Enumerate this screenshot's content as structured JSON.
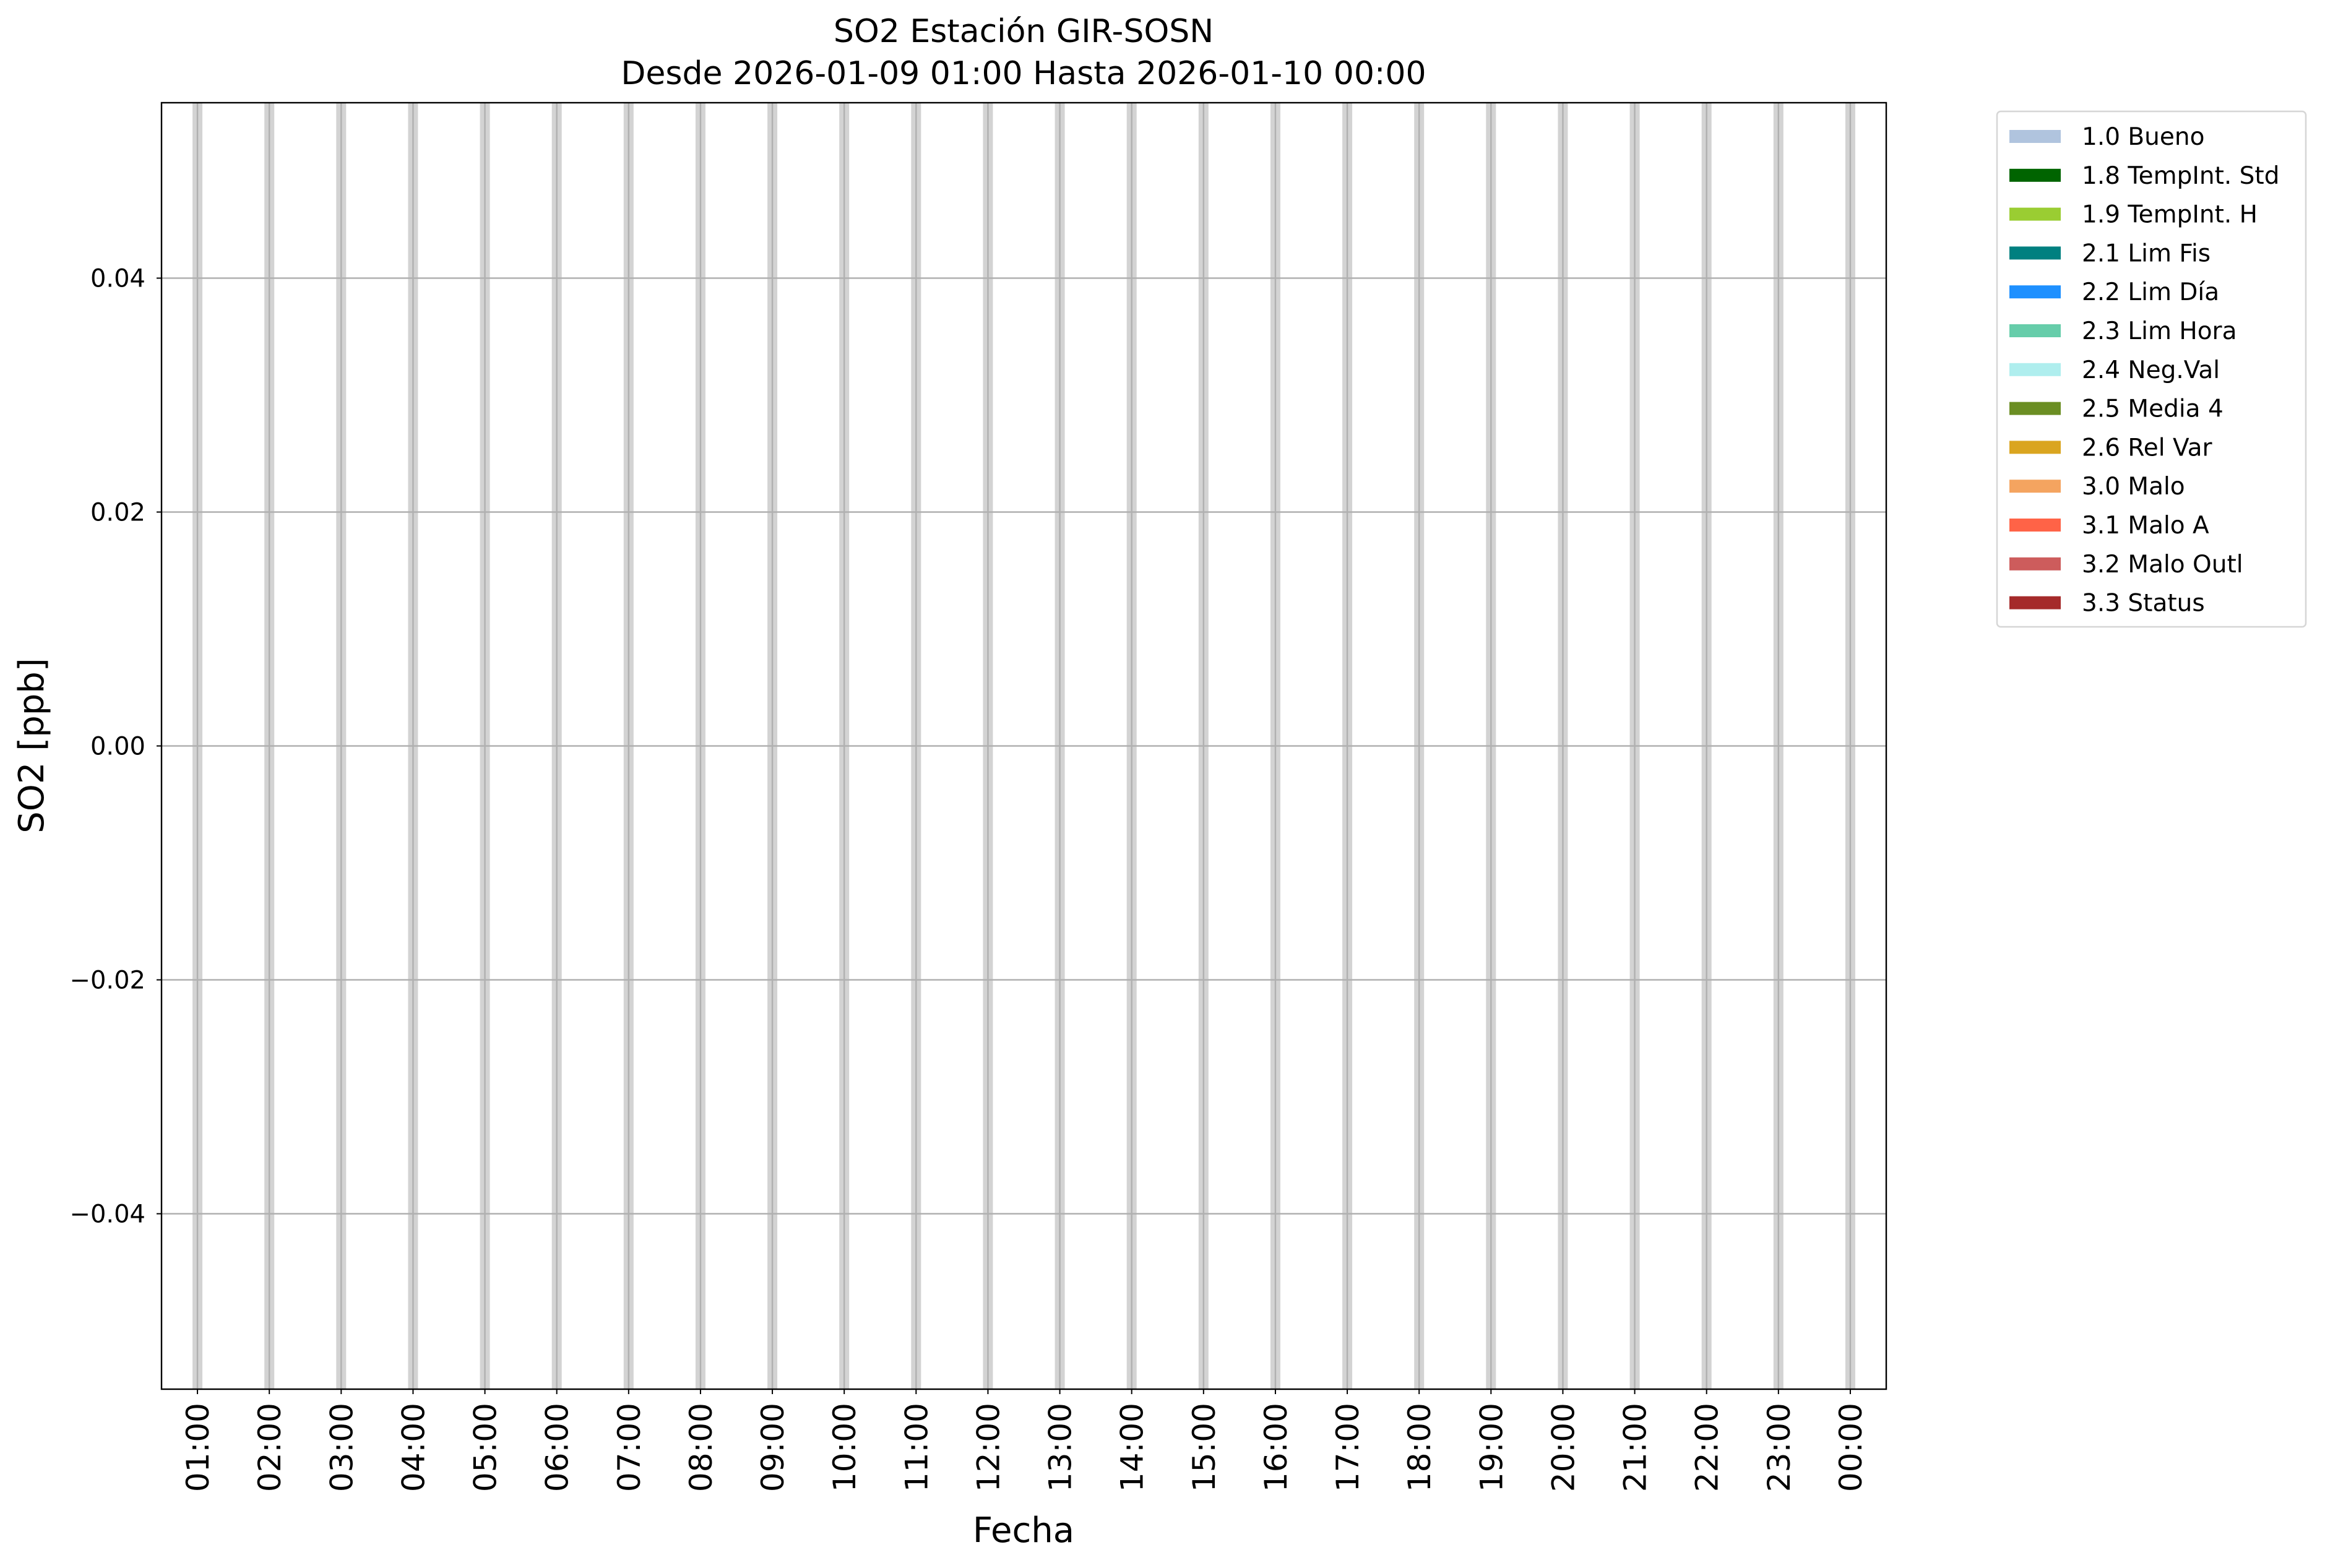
{
  "chart_data": {
    "type": "bar",
    "title": "SO2 Estación GIR-SOSN",
    "subtitle": "Desde 2026-01-09 01:00 Hasta 2026-01-10 00:00",
    "xlabel": "Fecha",
    "ylabel": "SO2 [ppb]",
    "categories": [
      "01:00",
      "02:00",
      "03:00",
      "04:00",
      "05:00",
      "06:00",
      "07:00",
      "08:00",
      "09:00",
      "10:00",
      "11:00",
      "12:00",
      "13:00",
      "14:00",
      "15:00",
      "16:00",
      "17:00",
      "18:00",
      "19:00",
      "20:00",
      "21:00",
      "22:00",
      "23:00",
      "00:00"
    ],
    "values": [
      null,
      null,
      null,
      null,
      null,
      null,
      null,
      null,
      null,
      null,
      null,
      null,
      null,
      null,
      null,
      null,
      null,
      null,
      null,
      null,
      null,
      null,
      null,
      null
    ],
    "shaded_hours": [
      "01:00",
      "02:00",
      "03:00",
      "04:00",
      "05:00",
      "06:00",
      "07:00",
      "08:00",
      "09:00",
      "10:00",
      "11:00",
      "12:00",
      "13:00",
      "14:00",
      "15:00",
      "16:00",
      "17:00",
      "18:00",
      "19:00",
      "20:00",
      "21:00",
      "22:00",
      "23:00",
      "00:00"
    ],
    "shade_color": "#d3d3d3",
    "ylim": [
      -0.055,
      0.055
    ],
    "yticks": [
      0.04,
      0.02,
      0.0,
      -0.02,
      -0.04
    ],
    "ytick_labels": [
      "0.04",
      "0.02",
      "0.00",
      "−0.02",
      "−0.04"
    ],
    "grid": true,
    "grid_color": "#b0b0b0",
    "legend_position": "outside-top-right",
    "legend": [
      {
        "label": "1.0 Bueno",
        "color": "#b0c4de"
      },
      {
        "label": "1.8 TempInt. Std",
        "color": "#006400"
      },
      {
        "label": "1.9 TempInt. H",
        "color": "#9acd32"
      },
      {
        "label": "2.1 Lim Fis",
        "color": "#008080"
      },
      {
        "label": "2.2 Lim Día",
        "color": "#1e90ff"
      },
      {
        "label": "2.3 Lim Hora",
        "color": "#66cdaa"
      },
      {
        "label": "2.4 Neg.Val",
        "color": "#afeeee"
      },
      {
        "label": "2.5 Media 4",
        "color": "#6b8e23"
      },
      {
        "label": "2.6 Rel Var",
        "color": "#daa520"
      },
      {
        "label": "3.0 Malo",
        "color": "#f4a460"
      },
      {
        "label": "3.1 Malo A",
        "color": "#ff6347"
      },
      {
        "label": "3.2 Malo Outl",
        "color": "#cd5c5c"
      },
      {
        "label": "3.3 Status",
        "color": "#a52a2a"
      }
    ]
  }
}
